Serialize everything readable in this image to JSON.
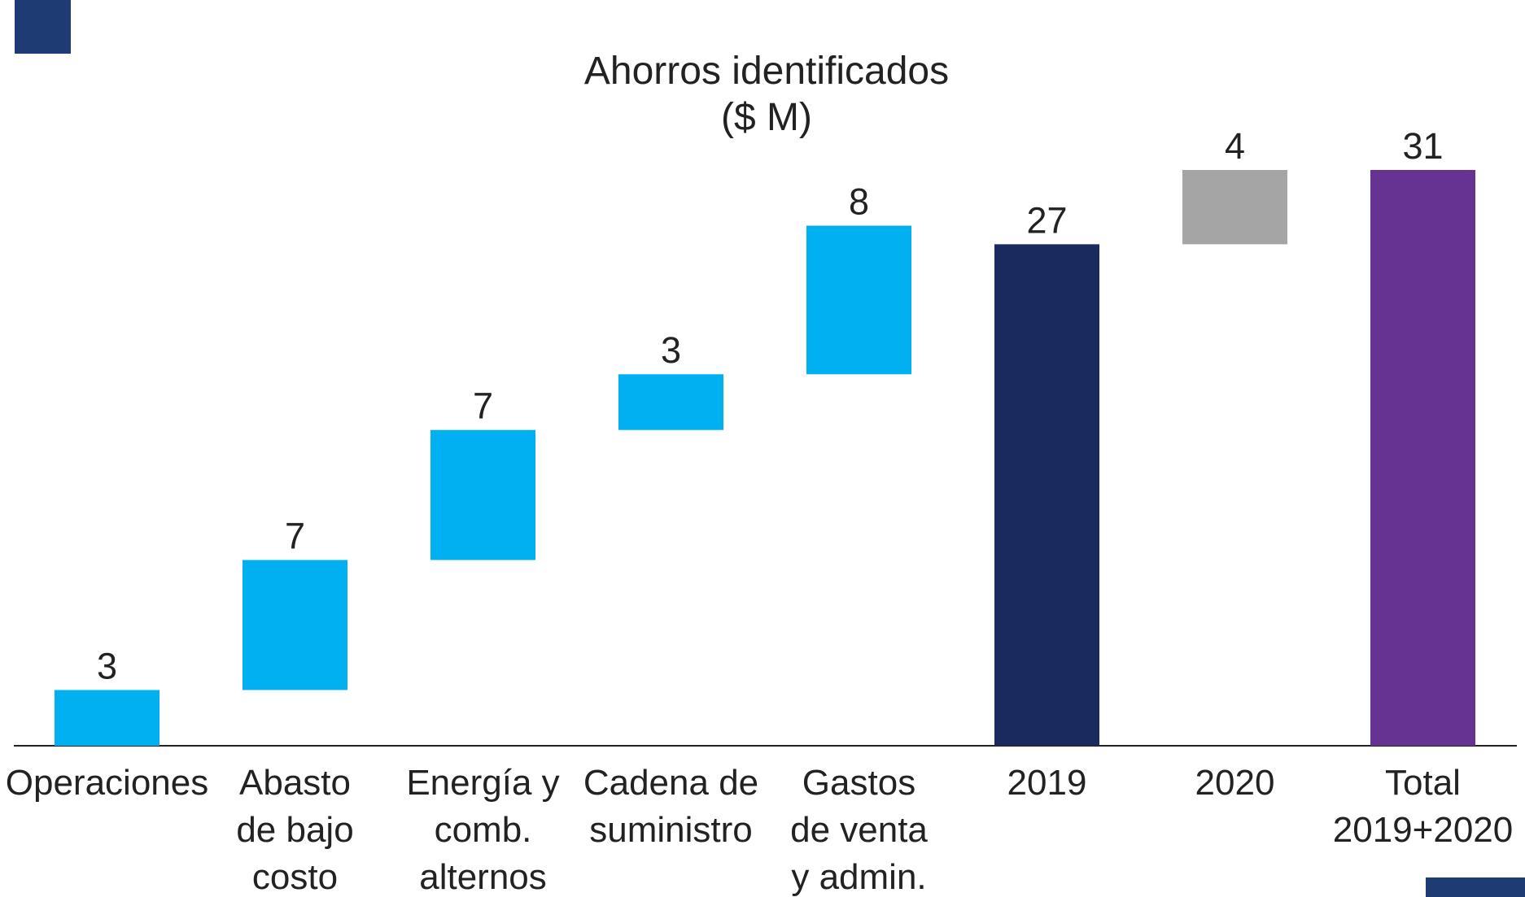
{
  "chart_data": {
    "type": "waterfall",
    "title": "Ahorros identificados",
    "subtitle": "($ M)",
    "categories": [
      "Operaciones",
      "Abasto\nde bajo\ncosto",
      "Energía y\ncomb.\nalternos",
      "Cadena de\nsuministro",
      "Gastos\nde venta\ny admin.",
      "2019",
      "2020",
      "Total\n2019+2020"
    ],
    "values": [
      3,
      7,
      7,
      3,
      8,
      27,
      4,
      31
    ],
    "is_total": [
      false,
      false,
      false,
      false,
      false,
      true,
      false,
      true
    ],
    "colors": [
      "#00b0f0",
      "#00b0f0",
      "#00b0f0",
      "#00b0f0",
      "#00b0f0",
      "#1b2a5e",
      "#a5a5a5",
      "#673393"
    ],
    "ylim": [
      0,
      31
    ]
  }
}
